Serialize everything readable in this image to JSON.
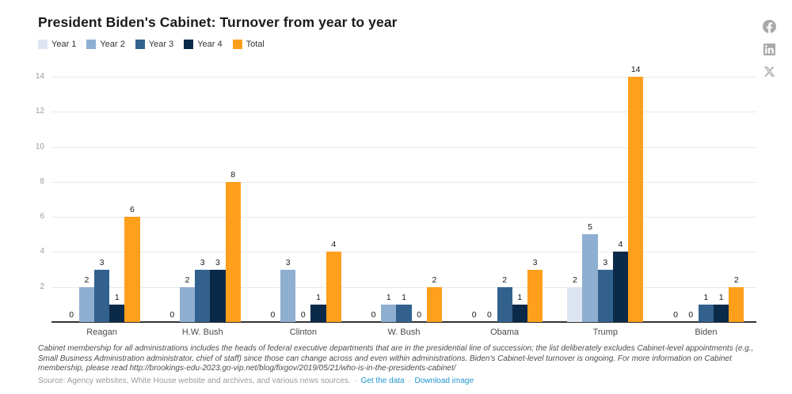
{
  "title": "President Biden's Cabinet: Turnover from year to year",
  "chart_data": {
    "type": "bar",
    "title": "President Biden's Cabinet: Turnover from year to year",
    "categories": [
      "Reagan",
      "H.W. Bush",
      "Clinton",
      "W. Bush",
      "Obama",
      "Trump",
      "Biden"
    ],
    "series": [
      {
        "name": "Year 1",
        "color": "#dde5f0",
        "values": [
          0,
          0,
          0,
          0,
          0,
          2,
          0
        ]
      },
      {
        "name": "Year 2",
        "color": "#8fafd1",
        "values": [
          2,
          2,
          3,
          1,
          0,
          5,
          0
        ]
      },
      {
        "name": "Year 3",
        "color": "#32618e",
        "values": [
          3,
          3,
          0,
          1,
          2,
          3,
          1
        ]
      },
      {
        "name": "Year 4",
        "color": "#0b2a49",
        "values": [
          1,
          3,
          1,
          0,
          1,
          4,
          1
        ]
      },
      {
        "name": "Total",
        "color": "#ff9f1c",
        "values": [
          6,
          8,
          4,
          2,
          3,
          14,
          2
        ]
      }
    ],
    "xlabel": "",
    "ylabel": "",
    "ylim": [
      0,
      14
    ],
    "yticks": [
      2,
      4,
      6,
      8,
      10,
      12,
      14
    ],
    "grid": true,
    "legend_position": "top",
    "value_labels": true
  },
  "notes": "Cabinet membership for all administrations includes the heads of federal executive departments that are in the presidential line of succession; the list deliberately excludes Cabinet-level appointments (e.g., Small Business Administration administrator, chief of staff) since those can change across and even within administrations. Biden's Cabinet-level turnover is ongoing. For more information on Cabinet membership, please read http://brookings-edu-2023.go-vip.net/blog/fixgov/2019/05/21/who-is-in-the-presidents-cabinet/",
  "source": {
    "text": "Source: Agency websites, White House website and archives, and various news sources.",
    "separator": "·",
    "links": [
      "Get the data",
      "Download image"
    ]
  },
  "social": {
    "icons": [
      "facebook-icon",
      "linkedin-icon",
      "x-icon"
    ]
  },
  "colors": {
    "link": "#2196cf",
    "axis_line": "#333333",
    "grid": "#e9e9e9",
    "tick_text": "#9b9b9b"
  }
}
